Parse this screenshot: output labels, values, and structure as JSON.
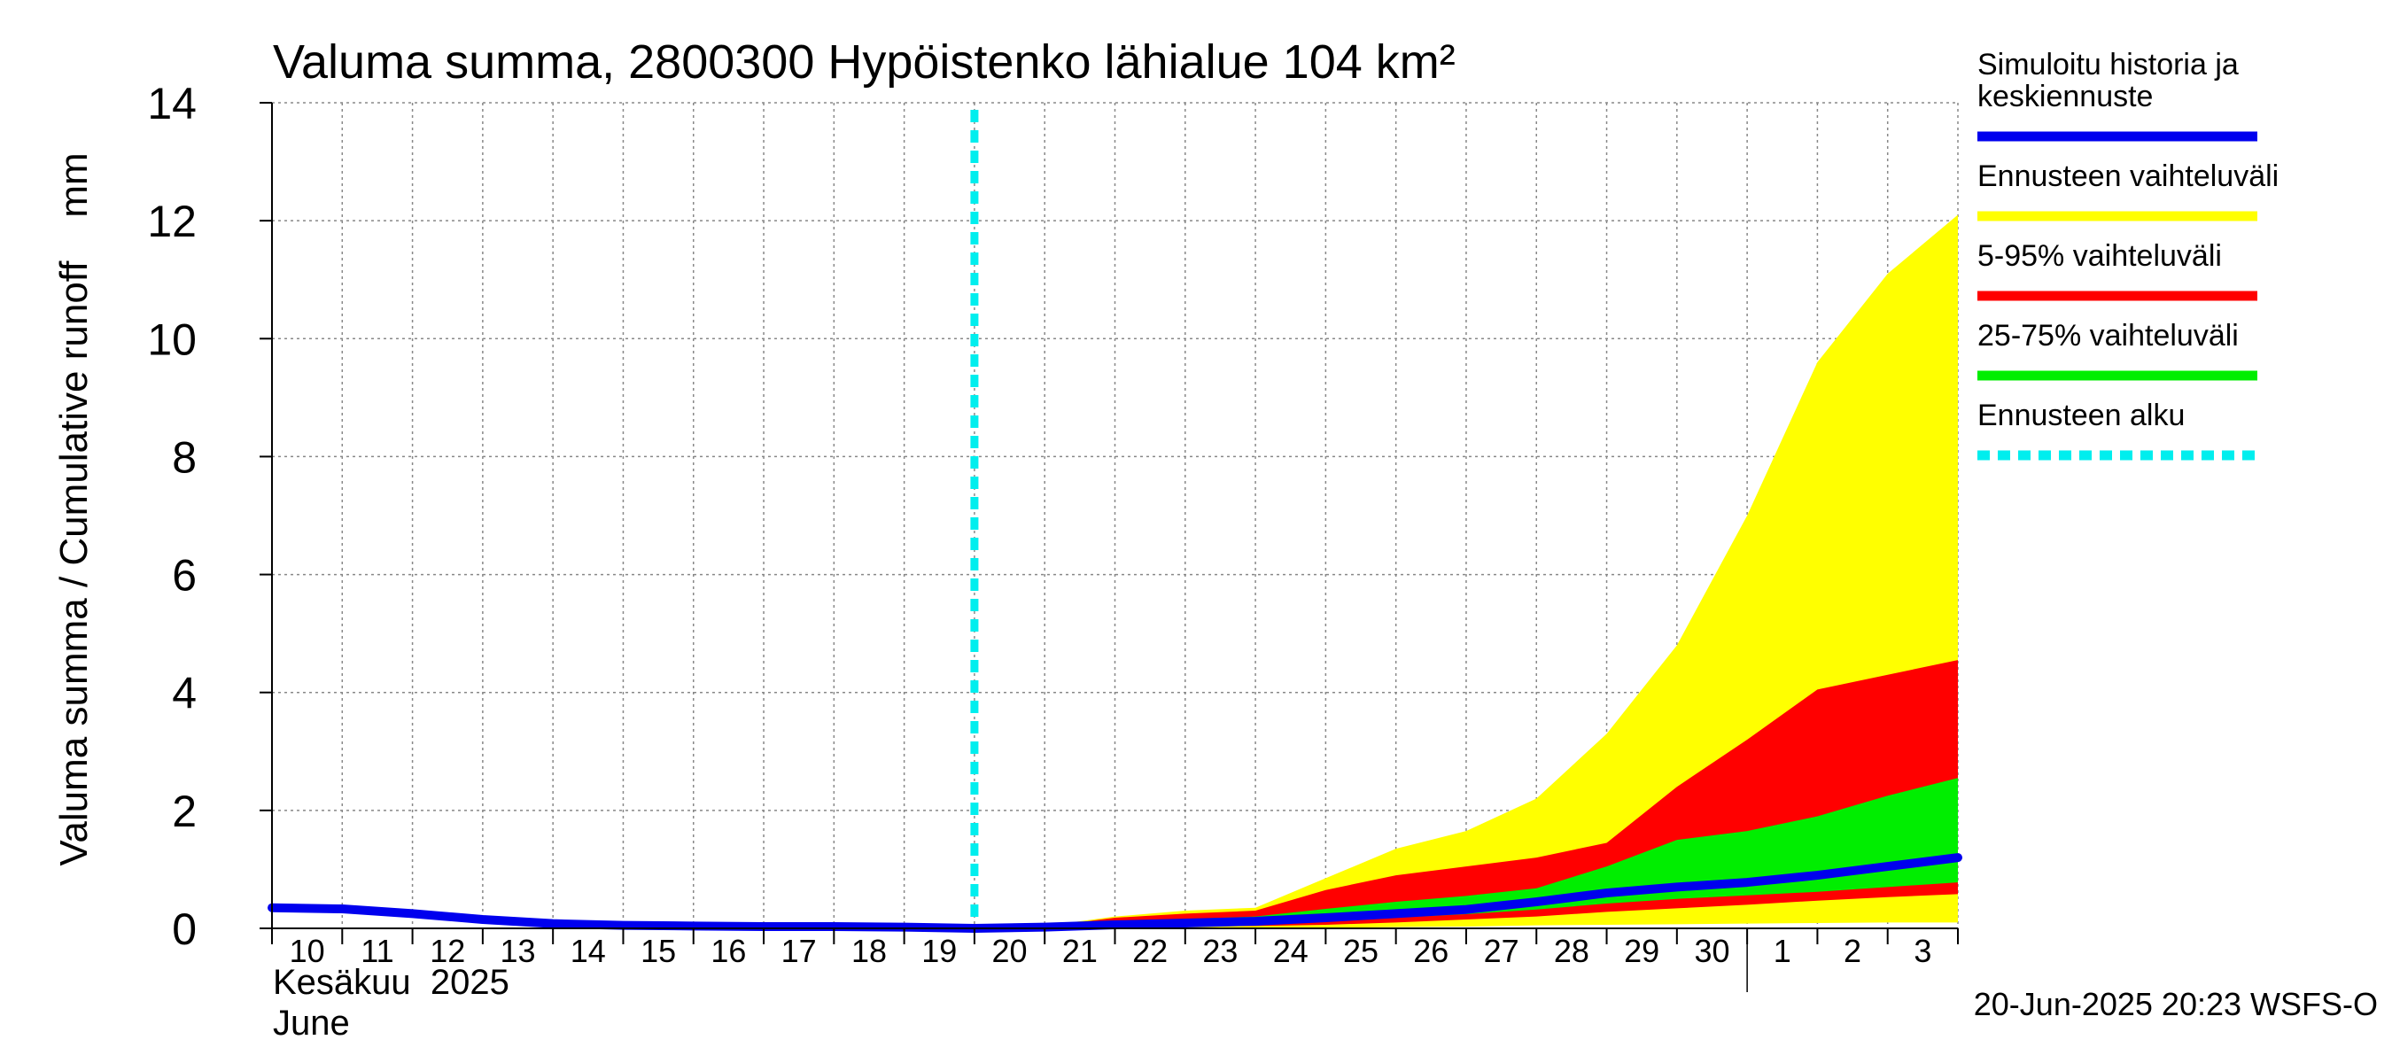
{
  "chart_data": {
    "type": "area",
    "title": "Valuma summa, 2800300 Hypöistenko lähialue 104 km²",
    "ylabel": "Valuma summa / Cumulative runoff    mm",
    "ylim": [
      0,
      14
    ],
    "y_ticks": [
      0,
      2,
      4,
      6,
      8,
      10,
      12,
      14
    ],
    "x_tick_labels": [
      "10",
      "11",
      "12",
      "13",
      "14",
      "15",
      "16",
      "17",
      "18",
      "19",
      "20",
      "21",
      "22",
      "23",
      "24",
      "25",
      "26",
      "27",
      "28",
      "29",
      "30",
      "1",
      "2",
      "3"
    ],
    "month_label_fi": "Kesäkuu  2025",
    "month_label_en": "June",
    "footer": "20-Jun-2025 20:23 WSFS-O",
    "grid": true,
    "legend_position": "right",
    "forecast_start_day": 20,
    "x_day_index": [
      0,
      1,
      2,
      3,
      4,
      5,
      6,
      7,
      8,
      9,
      10,
      11,
      12,
      13,
      14,
      15,
      16,
      17,
      18,
      19,
      20,
      21,
      22,
      23,
      24
    ],
    "series": [
      {
        "name": "Simuloitu historia ja keskiennuste",
        "name_lines": [
          "Simuloitu historia ja",
          "keskiennuste"
        ],
        "color": "#0000ee",
        "kind": "line",
        "x": [
          0,
          1,
          2,
          3,
          4,
          5,
          6,
          7,
          8,
          9,
          10,
          11,
          12,
          13,
          14,
          15,
          16,
          17,
          18,
          19,
          20,
          21,
          22,
          23,
          24
        ],
        "y": [
          0.35,
          0.33,
          0.25,
          0.15,
          0.08,
          0.05,
          0.04,
          0.03,
          0.03,
          0.02,
          0.0,
          0.02,
          0.06,
          0.09,
          0.12,
          0.18,
          0.25,
          0.32,
          0.45,
          0.6,
          0.7,
          0.78,
          0.9,
          1.05,
          1.2
        ]
      },
      {
        "name": "Ennusteen vaihteluväli",
        "color": "#ffff00",
        "kind": "band",
        "x": [
          10,
          11,
          12,
          13,
          14,
          15,
          16,
          17,
          18,
          19,
          20,
          21,
          22,
          23,
          24
        ],
        "lower": [
          0.0,
          0.0,
          0.0,
          0.0,
          0.0,
          0.01,
          0.02,
          0.03,
          0.05,
          0.06,
          0.07,
          0.08,
          0.09,
          0.1,
          0.1
        ],
        "upper": [
          0.0,
          0.04,
          0.2,
          0.3,
          0.35,
          0.85,
          1.35,
          1.65,
          2.2,
          3.3,
          4.8,
          7.0,
          9.6,
          11.1,
          12.1
        ]
      },
      {
        "name": "5-95% vaihteluväli",
        "color": "#ff0000",
        "kind": "band",
        "x": [
          10,
          11,
          12,
          13,
          14,
          15,
          16,
          17,
          18,
          19,
          20,
          21,
          22,
          23,
          24
        ],
        "lower": [
          0.0,
          0.0,
          0.02,
          0.03,
          0.04,
          0.06,
          0.1,
          0.15,
          0.2,
          0.28,
          0.34,
          0.4,
          0.47,
          0.53,
          0.58
        ],
        "upper": [
          0.0,
          0.03,
          0.18,
          0.25,
          0.3,
          0.65,
          0.9,
          1.05,
          1.2,
          1.45,
          2.4,
          3.2,
          4.05,
          4.3,
          4.55
        ]
      },
      {
        "name": "25-75% vaihteluväli",
        "color": "#00ee00",
        "kind": "band",
        "x": [
          10,
          11,
          12,
          13,
          14,
          15,
          16,
          17,
          18,
          19,
          20,
          21,
          22,
          23,
          24
        ],
        "lower": [
          0.0,
          0.01,
          0.04,
          0.06,
          0.08,
          0.12,
          0.18,
          0.24,
          0.32,
          0.42,
          0.5,
          0.56,
          0.62,
          0.7,
          0.78
        ],
        "upper": [
          0.0,
          0.02,
          0.1,
          0.16,
          0.2,
          0.33,
          0.45,
          0.55,
          0.68,
          1.05,
          1.5,
          1.65,
          1.9,
          2.25,
          2.55
        ]
      },
      {
        "name": "Ennusteen alku",
        "color": "#00eeee",
        "kind": "vline-dashed",
        "x": [
          10
        ]
      }
    ]
  }
}
